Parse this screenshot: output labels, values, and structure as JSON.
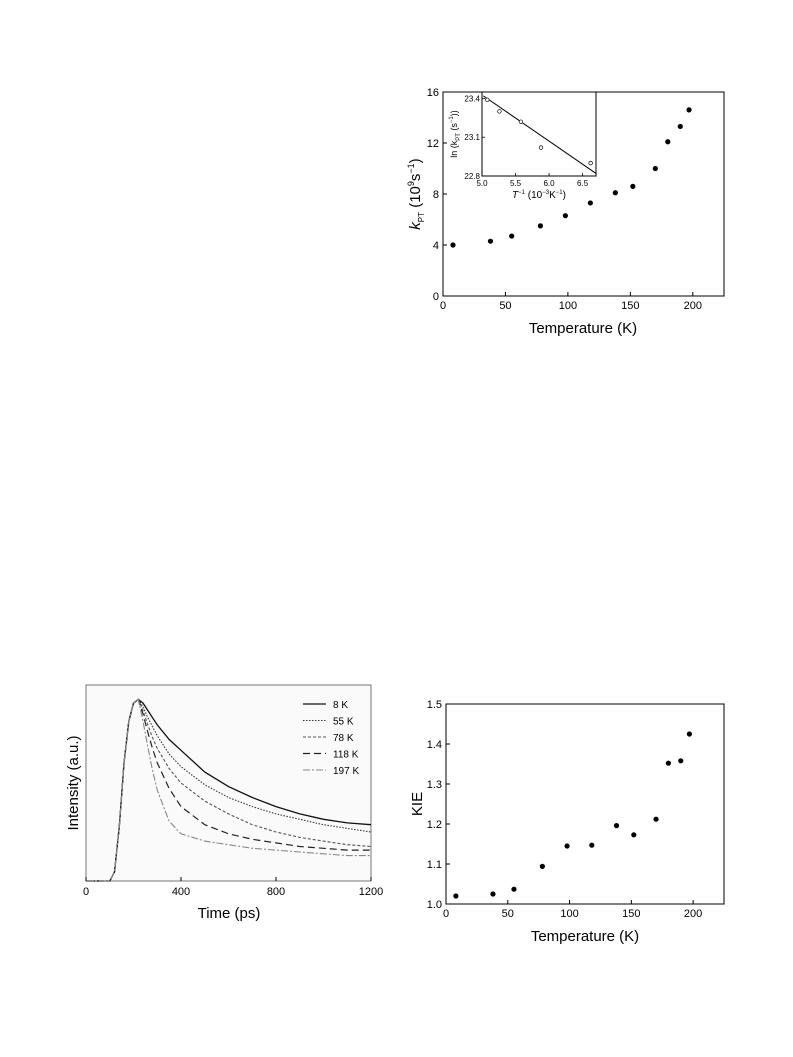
{
  "chart_data": [
    {
      "type": "scatter",
      "xlabel": "Temperature (K)",
      "ylabel_main": "k",
      "ylabel_sub": "PT",
      "ylabel_unit": " (10",
      "ylabel_exp": "9",
      "ylabel_unit2": "s",
      "ylabel_exp2": "−1",
      "ylabel_close": ")",
      "xlim": [
        0,
        225
      ],
      "ylim": [
        0,
        16
      ],
      "xticks": [
        0,
        50,
        100,
        150,
        200
      ],
      "yticks": [
        0,
        4,
        8,
        12,
        16
      ],
      "grid": false,
      "series": [
        {
          "x": [
            8,
            38,
            55,
            78,
            98,
            118,
            138,
            152,
            170,
            180,
            190,
            197
          ],
          "y": [
            4.0,
            4.3,
            4.7,
            5.5,
            6.3,
            7.3,
            8.1,
            8.6,
            10.0,
            12.1,
            13.3,
            14.6
          ]
        }
      ],
      "inset": {
        "type": "scatter",
        "xlabel_main": "T",
        "xlabel_exp": "−1",
        "xlabel_unit": " (10",
        "xlabel_exp2": "−3",
        "xlabel_unit2": "K",
        "xlabel_exp3": "−1",
        "xlabel_close": ")",
        "ylabel": "ln (k",
        "ylabel_sub": "PT",
        "ylabel_unit": " (s",
        "ylabel_exp": "−1",
        "ylabel_close": "))",
        "xlim": [
          5.0,
          6.7
        ],
        "ylim": [
          22.8,
          23.45
        ],
        "xticks": [
          "5.0",
          "5.5",
          "6.0",
          "6.5"
        ],
        "yticks": [
          "22.8",
          "23.1",
          "23.4"
        ],
        "series": [
          {
            "x": [
              5.08,
              5.26,
              5.58,
              5.88,
              6.62
            ],
            "y": [
              23.39,
              23.3,
              23.22,
              23.02,
              22.9
            ]
          }
        ],
        "fit_line": {
          "x": [
            5.02,
            6.7
          ],
          "y": [
            23.42,
            22.82
          ]
        }
      }
    },
    {
      "type": "line",
      "xlabel": "Time (ps)",
      "ylabel": "Intensity (a.u.)",
      "xlim": [
        0,
        1200
      ],
      "ylim": [
        0,
        1.08
      ],
      "xticks": [
        0,
        400,
        800,
        1200
      ],
      "yticks": [],
      "legend_position": "top-right",
      "series": [
        {
          "name": "8 K",
          "x": [
            0,
            100,
            120,
            140,
            160,
            180,
            200,
            220,
            240,
            260,
            280,
            300,
            350,
            400,
            500,
            600,
            700,
            800,
            900,
            1000,
            1100,
            1200
          ],
          "y": [
            0,
            0,
            0.05,
            0.3,
            0.65,
            0.88,
            0.98,
            1.0,
            0.98,
            0.94,
            0.9,
            0.86,
            0.78,
            0.72,
            0.6,
            0.52,
            0.46,
            0.41,
            0.37,
            0.34,
            0.32,
            0.31
          ]
        },
        {
          "name": "55 K",
          "x": [
            0,
            100,
            120,
            140,
            160,
            180,
            200,
            220,
            240,
            260,
            280,
            300,
            350,
            400,
            500,
            600,
            700,
            800,
            900,
            1000,
            1100,
            1200
          ],
          "y": [
            0,
            0,
            0.05,
            0.3,
            0.65,
            0.88,
            0.98,
            1.0,
            0.96,
            0.9,
            0.85,
            0.8,
            0.7,
            0.63,
            0.53,
            0.46,
            0.41,
            0.37,
            0.34,
            0.31,
            0.29,
            0.27
          ]
        },
        {
          "name": "78 K",
          "x": [
            0,
            100,
            120,
            140,
            160,
            180,
            200,
            220,
            240,
            260,
            280,
            300,
            350,
            400,
            500,
            600,
            700,
            800,
            900,
            1000,
            1100,
            1200
          ],
          "y": [
            0,
            0,
            0.05,
            0.3,
            0.65,
            0.88,
            0.98,
            1.0,
            0.94,
            0.86,
            0.79,
            0.73,
            0.62,
            0.54,
            0.44,
            0.37,
            0.31,
            0.27,
            0.24,
            0.22,
            0.2,
            0.19
          ]
        },
        {
          "name": "118 K",
          "x": [
            0,
            100,
            120,
            140,
            160,
            180,
            200,
            220,
            240,
            260,
            280,
            300,
            350,
            400,
            500,
            600,
            700,
            800,
            900,
            1000,
            1100,
            1200
          ],
          "y": [
            0,
            0,
            0.05,
            0.3,
            0.65,
            0.88,
            0.98,
            1.0,
            0.92,
            0.82,
            0.73,
            0.65,
            0.51,
            0.41,
            0.31,
            0.26,
            0.23,
            0.21,
            0.19,
            0.18,
            0.17,
            0.17
          ]
        },
        {
          "name": "197 K",
          "x": [
            0,
            100,
            120,
            140,
            160,
            180,
            200,
            220,
            240,
            260,
            280,
            300,
            350,
            400,
            500,
            600,
            700,
            800,
            900,
            1000,
            1100,
            1200
          ],
          "y": [
            0,
            0,
            0.05,
            0.3,
            0.65,
            0.88,
            0.98,
            1.0,
            0.88,
            0.74,
            0.61,
            0.5,
            0.33,
            0.26,
            0.22,
            0.2,
            0.18,
            0.17,
            0.16,
            0.15,
            0.14,
            0.14
          ]
        }
      ]
    },
    {
      "type": "scatter",
      "xlabel": "Temperature (K)",
      "ylabel": "KIE",
      "xlim": [
        0,
        225
      ],
      "ylim": [
        1.0,
        1.5
      ],
      "xticks": [
        0,
        50,
        100,
        150,
        200
      ],
      "yticks": [
        "1.0",
        "1.1",
        "1.2",
        "1.3",
        "1.4",
        "1.5"
      ],
      "grid": false,
      "series": [
        {
          "x": [
            8,
            38,
            55,
            78,
            98,
            118,
            138,
            152,
            170,
            180,
            190,
            197
          ],
          "y": [
            1.02,
            1.025,
            1.037,
            1.094,
            1.145,
            1.147,
            1.196,
            1.173,
            1.212,
            1.352,
            1.358,
            1.425
          ]
        }
      ]
    }
  ]
}
